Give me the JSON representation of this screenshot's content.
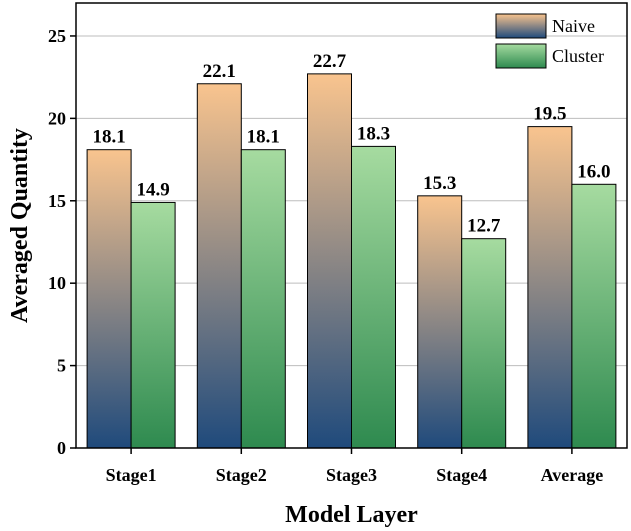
{
  "chart_data": {
    "type": "bar",
    "xlabel": "Model Layer",
    "ylabel": "Averaged Quantity",
    "categories": [
      "Stage1",
      "Stage2",
      "Stage3",
      "Stage4",
      "Average"
    ],
    "series": [
      {
        "name": "Naive",
        "values": [
          18.1,
          22.1,
          22.7,
          15.3,
          19.5
        ],
        "labels": [
          "18.1",
          "22.1",
          "22.7",
          "15.3",
          "19.5"
        ],
        "gradient": [
          "#f9c48e",
          "#1f4a7c"
        ]
      },
      {
        "name": "Cluster",
        "values": [
          14.9,
          18.1,
          18.3,
          12.7,
          16.0
        ],
        "labels": [
          "14.9",
          "18.1",
          "18.3",
          "12.7",
          "16.0"
        ],
        "gradient": [
          "#a6dba0",
          "#2e8a4f"
        ]
      }
    ],
    "ylim": [
      0,
      27
    ],
    "yticks": [
      0,
      5,
      10,
      15,
      20,
      25
    ],
    "grid": true,
    "legend_position": "top-right"
  }
}
